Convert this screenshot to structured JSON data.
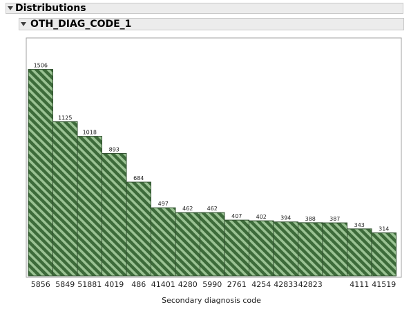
{
  "header": {
    "title": "Distributions"
  },
  "section": {
    "title": "OTH_DIAG_CODE_1"
  },
  "colors": {
    "bar_fill": "#3d6b3a",
    "bar_stripe": "#9ac293",
    "bar_outline": "#2f4f2d",
    "frame": "#a0a0a0"
  },
  "chart_data": {
    "type": "bar",
    "categories": [
      "5856",
      "5849",
      "51881",
      "4019",
      "486",
      "41401",
      "4280",
      "5990",
      "2761",
      "4254",
      "42833",
      "42823",
      "",
      "4111",
      "41519"
    ],
    "values": [
      1506,
      1125,
      1018,
      893,
      684,
      497,
      462,
      462,
      407,
      402,
      394,
      388,
      387,
      343,
      314
    ],
    "data_labels": [
      "1506",
      "1125",
      "1018",
      "893",
      "684",
      "497",
      "462",
      "462",
      "407",
      "402",
      "394",
      "388",
      "387",
      "343",
      "314"
    ],
    "xlabel": "Secondary diagnosis code",
    "ylabel": "",
    "ylim": [
      0,
      1700
    ],
    "grid": false,
    "legend": "none"
  }
}
